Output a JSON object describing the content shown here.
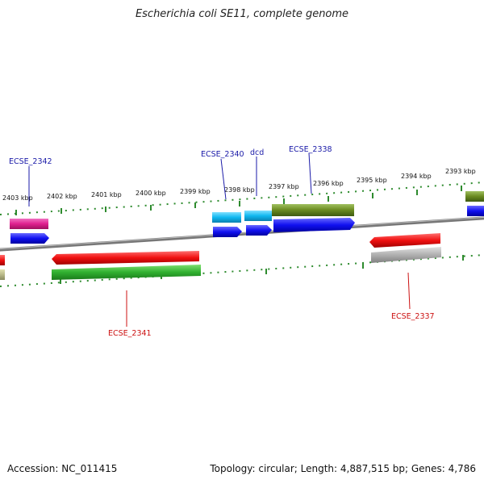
{
  "title": "Escherichia coli SE11, complete genome",
  "footer": {
    "accession": "Accession: NC_011415",
    "summary": "Topology: circular; Length: 4,887,515 bp; Genes: 4,786"
  },
  "colors": {
    "backbone": "#888888",
    "tick": "#2e8b2e",
    "label_upper": "#1a1aa8",
    "label_lower": "#cc1111"
  },
  "ticks": [
    {
      "label": "2403 kbp"
    },
    {
      "label": "2402 kbp"
    },
    {
      "label": "2401 kbp"
    },
    {
      "label": "2400 kbp"
    },
    {
      "label": "2399 kbp"
    },
    {
      "label": "2398 kbp"
    },
    {
      "label": "2397 kbp"
    },
    {
      "label": "2396 kbp"
    },
    {
      "label": "2395 kbp"
    },
    {
      "label": "2394 kbp"
    },
    {
      "label": "2393 kbp"
    }
  ],
  "gene_labels": [
    {
      "text": "ECSE_2342",
      "strand": "upper"
    },
    {
      "text": "ECSE_2340",
      "strand": "upper"
    },
    {
      "text": "dcd",
      "strand": "upper"
    },
    {
      "text": "ECSE_2338",
      "strand": "upper"
    },
    {
      "text": "ECSE_2341",
      "strand": "lower"
    },
    {
      "text": "ECSE_2337",
      "strand": "lower"
    }
  ]
}
